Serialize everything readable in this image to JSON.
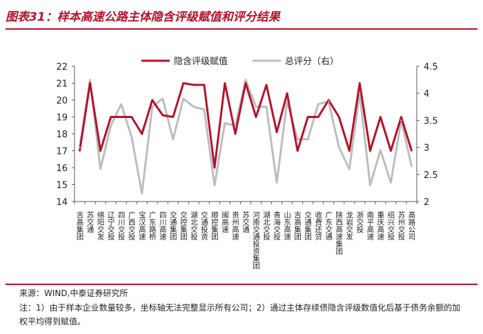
{
  "title": "图表31：样本高速公路主体隐含评级赋值和评分结果",
  "source": "来源：WIND,中泰证券研究所",
  "note": "注：1）由于样本企业数量较多，坐标轴无法完整显示所有公司；2）通过主体存续债隐含评级数值化后基于债务余额的加权平均得到赋值。",
  "colors": {
    "primary": "#b5122a",
    "secondary": "#bdbdbd",
    "axis": "#595959"
  },
  "chart_data": {
    "type": "line",
    "categories": [
      "吉高集团",
      "苏交通",
      "绵阳交发",
      "辽宁交投",
      "四川交投",
      "广西交投",
      "宝汉高速",
      "广东路桥",
      "四川高速",
      "交通集团",
      "交控集团",
      "湖北交投",
      "交通投资",
      "顺控集团",
      "闽高速",
      "贵州高速",
      "苏交通",
      "河南交通投资集团",
      "湖北交投",
      "青海交投",
      "山东高速",
      "吉高集团",
      "交通集团",
      "收费还贷",
      "广东交通",
      "陕西高速集团",
      "龙岩交发",
      "浙交投",
      "南平高速",
      "重庆高速",
      "绍兴交投",
      "苏州交投",
      "高路公司"
    ],
    "x_tick_labels": [
      "吉高集团",
      "苏交通",
      "绵阳交发",
      "辽宁交投",
      "四川交投",
      "广西交投",
      "宝汉高速",
      "广东路桥",
      "四川高速",
      "交通集团",
      "交控集团",
      "湖北交投",
      "交通投资",
      "顺控集团",
      "闽高速",
      "贵州高速",
      "苏交通",
      "河南交通投资集团",
      "湖北交投",
      "青海交投",
      "山东高速",
      "吉高集团",
      "交通集团",
      "收费还贷",
      "广东交通",
      "陕西高速集团",
      "龙岩交发",
      "浙交投",
      "南平高速",
      "重庆高速",
      "绍兴交投",
      "苏州交投",
      "高路公司"
    ],
    "series": [
      {
        "name": "隐含评级赋值",
        "axis": "left",
        "values": [
          17,
          21,
          17,
          19,
          19,
          19,
          18,
          20,
          19.1,
          19,
          21,
          20.9,
          20.9,
          16,
          21,
          18,
          21,
          19,
          20.9,
          18.1,
          20.4,
          17,
          19,
          19,
          20,
          19,
          17,
          21,
          17,
          19,
          17,
          19,
          17
        ]
      },
      {
        "name": "总评分（右）",
        "axis": "right",
        "values": [
          3.0,
          4.25,
          2.6,
          3.4,
          3.8,
          3.2,
          2.15,
          3.75,
          3.9,
          3.15,
          3.9,
          3.75,
          3.7,
          2.3,
          3.45,
          3.4,
          4.25,
          3.75,
          3.75,
          2.35,
          3.85,
          3.15,
          3.15,
          3.8,
          3.85,
          3.0,
          2.6,
          4.0,
          2.3,
          2.95,
          2.35,
          3.5,
          2.65
        ]
      }
    ],
    "y_left": {
      "min": 14,
      "max": 22,
      "ticks": [
        "14",
        "15",
        "16",
        "17",
        "18",
        "19",
        "20",
        "21",
        "22"
      ]
    },
    "y_right": {
      "min": 2,
      "max": 4.5,
      "ticks": [
        "2",
        "2.5",
        "3",
        "3.5",
        "4",
        "4.5"
      ]
    },
    "legend": {
      "position": "top-center"
    },
    "grid": false
  }
}
